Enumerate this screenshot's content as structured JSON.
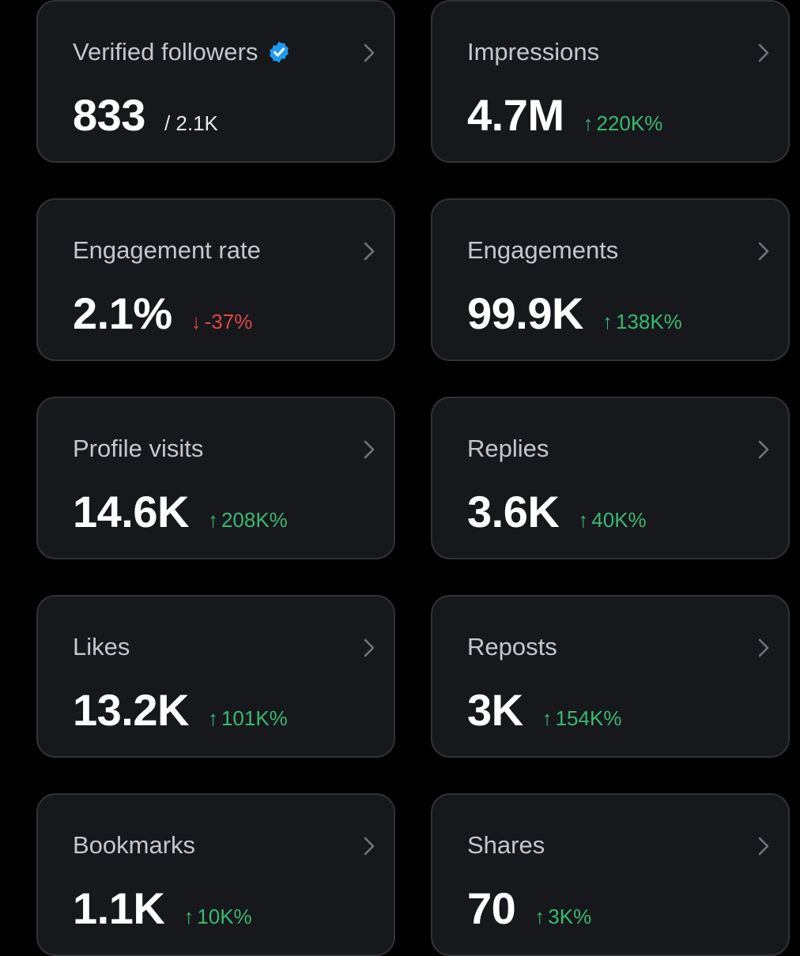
{
  "colors": {
    "background": "#000000",
    "card_bg": "#16181c",
    "card_border": "#2f3336",
    "title_text": "#c4c8cc",
    "value_text": "#ffffff",
    "positive": "#3bb873",
    "negative": "#e0464a",
    "verified_badge": "#1d9bf0"
  },
  "icons": {
    "verified": "verified-badge-icon",
    "chevron": "chevron-right-icon",
    "arrow_up": "↑",
    "arrow_down": "↓"
  },
  "metrics": {
    "verified_followers": {
      "title": "Verified followers",
      "value": "833",
      "sub": "/ 2.1K"
    },
    "impressions": {
      "title": "Impressions",
      "value": "4.7M",
      "change": "220K%",
      "direction": "up"
    },
    "engagement_rate": {
      "title": "Engagement rate",
      "value": "2.1%",
      "change": "-37%",
      "direction": "down"
    },
    "engagements": {
      "title": "Engagements",
      "value": "99.9K",
      "change": "138K%",
      "direction": "up"
    },
    "profile_visits": {
      "title": "Profile visits",
      "value": "14.6K",
      "change": "208K%",
      "direction": "up"
    },
    "replies": {
      "title": "Replies",
      "value": "3.6K",
      "change": "40K%",
      "direction": "up"
    },
    "likes": {
      "title": "Likes",
      "value": "13.2K",
      "change": "101K%",
      "direction": "up"
    },
    "reposts": {
      "title": "Reposts",
      "value": "3K",
      "change": "154K%",
      "direction": "up"
    },
    "bookmarks": {
      "title": "Bookmarks",
      "value": "1.1K",
      "change": "10K%",
      "direction": "up"
    },
    "shares": {
      "title": "Shares",
      "value": "70",
      "change": "3K%",
      "direction": "up"
    }
  }
}
